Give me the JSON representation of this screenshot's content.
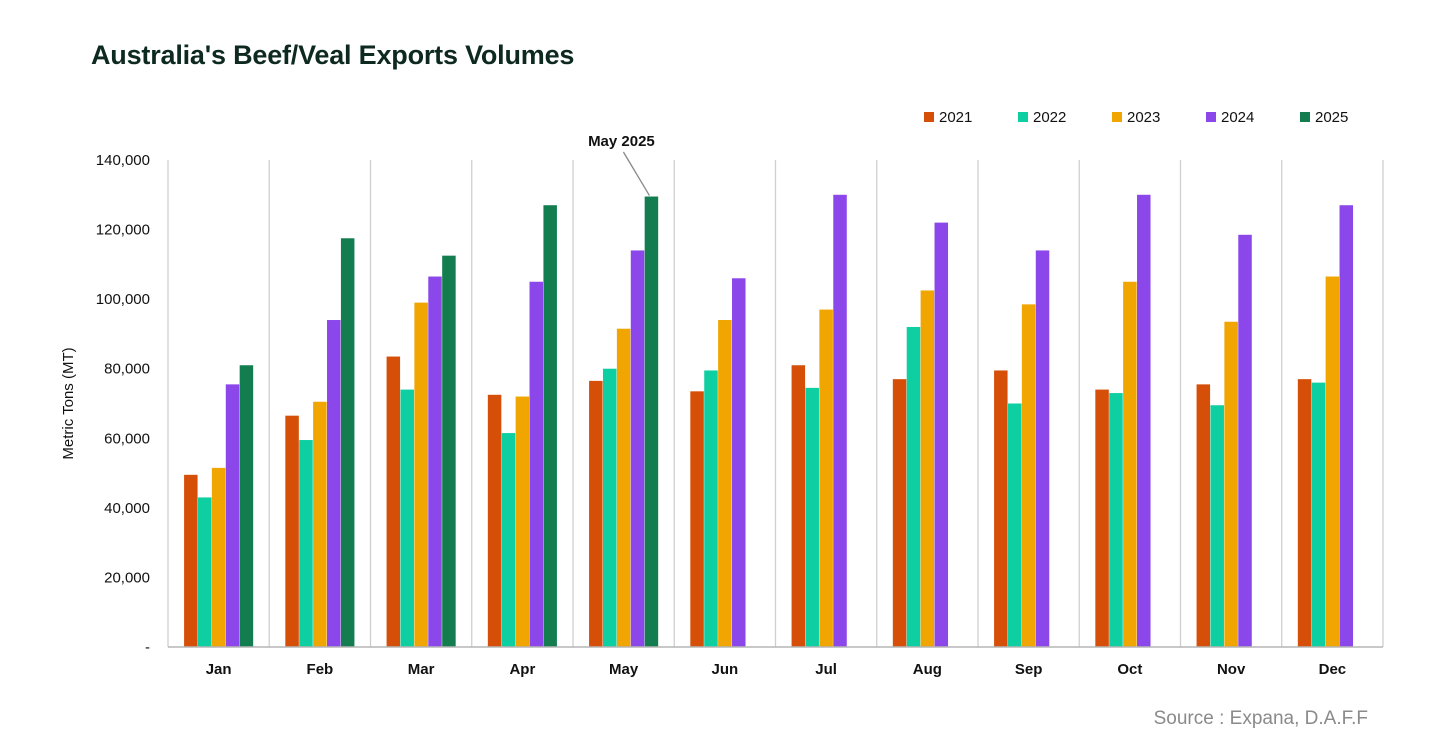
{
  "header": {
    "title": "Australia's Beef/Veal Exports Volumes",
    "source": "Source : Expana, D.A.F.F"
  },
  "colors": {
    "2021": "#d64f08",
    "2022": "#0ecfa2",
    "2023": "#f0a500",
    "2024": "#8c47ea",
    "2025": "#147d50",
    "grid": "#cfcfcf",
    "axis": "#b5b5b5"
  },
  "chart_data": {
    "type": "bar",
    "title": "Australia's Beef/Veal Exports Volumes",
    "xlabel": "",
    "ylabel": "Metric Tons (MT)",
    "ylim": [
      0,
      140000
    ],
    "yticks": [
      0,
      20000,
      40000,
      60000,
      80000,
      100000,
      120000,
      140000
    ],
    "ytick_labels": [
      "-",
      "20,000",
      "40,000",
      "60,000",
      "80,000",
      "100,000",
      "120,000",
      "140,000"
    ],
    "legend_position": "top-right",
    "categories": [
      "Jan",
      "Feb",
      "Mar",
      "Apr",
      "May",
      "Jun",
      "Jul",
      "Aug",
      "Sep",
      "Oct",
      "Nov",
      "Dec"
    ],
    "series": [
      {
        "name": "2021",
        "values": [
          49500,
          66500,
          83500,
          72500,
          76500,
          73500,
          81000,
          77000,
          79500,
          74000,
          75500,
          77000
        ]
      },
      {
        "name": "2022",
        "values": [
          43000,
          59500,
          74000,
          61500,
          80000,
          79500,
          74500,
          92000,
          70000,
          73000,
          69500,
          76000
        ]
      },
      {
        "name": "2023",
        "values": [
          51500,
          70500,
          99000,
          72000,
          91500,
          94000,
          97000,
          102500,
          98500,
          105000,
          93500,
          106500
        ]
      },
      {
        "name": "2024",
        "values": [
          75500,
          94000,
          106500,
          105000,
          114000,
          106000,
          130000,
          122000,
          114000,
          130000,
          118500,
          127000
        ]
      },
      {
        "name": "2025",
        "values": [
          81000,
          117500,
          112500,
          127000,
          129500,
          null,
          null,
          null,
          null,
          null,
          null,
          null
        ]
      }
    ],
    "annotations": [
      {
        "text": "May 2025",
        "category": "May",
        "series": "2025"
      }
    ]
  }
}
